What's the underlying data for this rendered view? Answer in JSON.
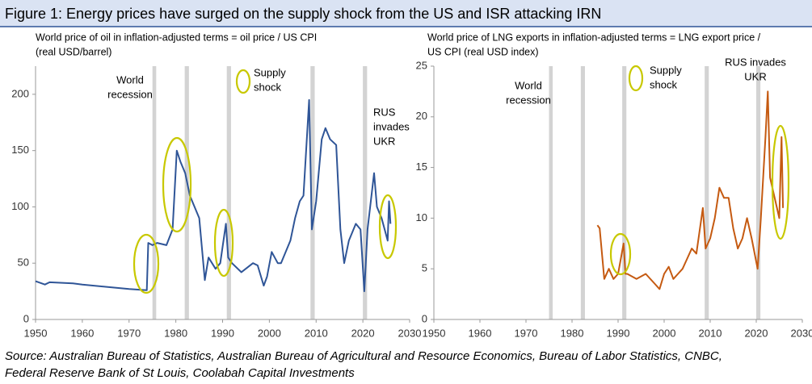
{
  "header": {
    "title": "Figure 1: Energy prices have surged on the supply shock from the US and ISR attacking IRN"
  },
  "footnote": [
    "Source: Australian Bureau of Statistics, Australian Bureau of Agricultural and Resource Economics, Bureau of Labor Statistics, CNBC,",
    "Federal Reserve Bank of St Louis, Coolabah Capital Investments"
  ],
  "chart_data": [
    {
      "type": "line",
      "subtitle": [
        "World price of oil in inflation-adjusted terms = oil price / US CPI",
        "(real USD/barrel)"
      ],
      "x": [
        1950,
        1952,
        1953,
        1958,
        1960,
        1965,
        1970,
        1973.8,
        1974.1,
        1975,
        1976,
        1978,
        1979.3,
        1980.2,
        1981,
        1982,
        1983,
        1985,
        1986.2,
        1987,
        1988.5,
        1989.5,
        1990.7,
        1991.2,
        1992,
        1994,
        1996.5,
        1997.5,
        1998.8,
        1999.5,
        2000.5,
        2001.8,
        2002.5,
        2003.5,
        2004.5,
        2005.5,
        2006.5,
        2007.3,
        2008.5,
        2009.1,
        2010,
        2011.2,
        2012,
        2013,
        2014.3,
        2015.2,
        2016,
        2017,
        2018.5,
        2019.5,
        2020.3,
        2021,
        2022.4,
        2023,
        2024,
        2025.3,
        2025.6,
        2025.9
      ],
      "values": [
        34,
        31,
        33,
        32,
        31,
        29,
        27,
        26,
        68,
        66,
        68,
        66,
        80,
        150,
        140,
        130,
        110,
        90,
        35,
        55,
        45,
        50,
        85,
        55,
        50,
        42,
        50,
        48,
        30,
        38,
        60,
        50,
        50,
        60,
        70,
        90,
        105,
        110,
        195,
        80,
        105,
        160,
        170,
        160,
        155,
        80,
        50,
        70,
        85,
        80,
        25,
        80,
        130,
        100,
        90,
        70,
        105,
        85
      ],
      "color": "#2f5597",
      "xlim": [
        1950,
        2030
      ],
      "xticks": [
        1950,
        1960,
        1970,
        1980,
        1990,
        2000,
        2010,
        2020,
        2030
      ],
      "ylim": [
        0,
        225
      ],
      "yticks": [
        0,
        50,
        100,
        150,
        200
      ],
      "shaded_periods": [
        [
          1975.0,
          1975.8
        ],
        [
          1981.9,
          1982.8
        ],
        [
          1990.9,
          1991.8
        ],
        [
          2008.8,
          2009.7
        ],
        [
          2020.0,
          2020.9
        ]
      ],
      "annotations": [
        {
          "lines": [
            "World",
            "recession"
          ]
        },
        {
          "lines": [
            "Supply",
            "shock"
          ]
        },
        {
          "lines": [
            "RUS",
            "invades",
            "UKR"
          ]
        }
      ]
    },
    {
      "type": "line",
      "subtitle": [
        "World price of LNG exports in inflation-adjusted terms = LNG export price /",
        "US CPI (real USD index)"
      ],
      "x": [
        1985.5,
        1986,
        1987,
        1988,
        1989,
        1990,
        1991.2,
        1991.6,
        1992,
        1994,
        1996,
        1998,
        1999,
        2000,
        2001,
        2002,
        2003,
        2004,
        2005,
        2006,
        2007,
        2008.4,
        2009,
        2010,
        2011,
        2012,
        2013,
        2014,
        2015,
        2016,
        2017,
        2018,
        2019,
        2020.3,
        2021,
        2022,
        2022.5,
        2023,
        2024,
        2025,
        2025.5,
        2025.8
      ],
      "values": [
        9.3,
        9,
        4,
        5,
        4,
        4.5,
        7.5,
        4.5,
        4.5,
        4,
        4.5,
        3.5,
        3,
        4.5,
        5.2,
        4,
        4.5,
        5,
        6,
        7,
        6.5,
        11,
        7,
        8,
        10,
        13,
        12,
        12,
        9,
        7,
        8,
        10,
        8,
        5,
        10,
        18,
        22.5,
        14,
        12,
        10,
        18,
        11
      ],
      "color": "#c55a11",
      "xlim": [
        1950,
        2030
      ],
      "xticks": [
        1950,
        1960,
        1970,
        1980,
        1990,
        2000,
        2010,
        2020,
        2030
      ],
      "ylim": [
        0,
        25
      ],
      "yticks": [
        0,
        5,
        10,
        15,
        20,
        25
      ],
      "shaded_periods": [
        [
          1975.0,
          1975.8
        ],
        [
          1981.9,
          1982.8
        ],
        [
          1990.9,
          1991.8
        ],
        [
          2008.8,
          2009.7
        ],
        [
          2020.0,
          2020.9
        ]
      ],
      "annotations": [
        {
          "lines": [
            "World",
            "recession"
          ]
        },
        {
          "lines": [
            "Supply",
            "shock"
          ]
        },
        {
          "lines": [
            "RUS invades",
            "UKR"
          ]
        }
      ]
    }
  ]
}
